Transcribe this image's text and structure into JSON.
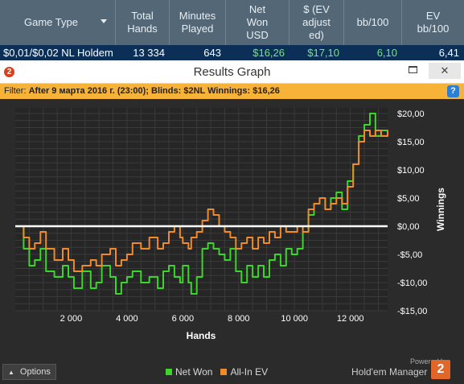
{
  "stats": {
    "columns": [
      {
        "label": "Game Type",
        "width": 144
      },
      {
        "label": "Total Hands",
        "width": 67
      },
      {
        "label": "Minutes Played",
        "width": 70
      },
      {
        "label": "Net Won USD",
        "width": 79
      },
      {
        "label": "$ (EV adjusted)",
        "width": 68
      },
      {
        "label": "bb/100",
        "width": 72
      },
      {
        "label": "EV bb/100",
        "width": 77
      }
    ],
    "header_lines": [
      [
        "Game Type"
      ],
      [
        "Total",
        "Hands"
      ],
      [
        "Minutes",
        "Played"
      ],
      [
        "Net",
        "Won",
        "USD"
      ],
      [
        "$ (EV",
        "adjust",
        "ed)"
      ],
      [
        "bb/100"
      ],
      [
        "EV",
        "bb/100"
      ]
    ],
    "row": {
      "game_type": "$0,01/$0,02 NL Holdem",
      "total_hands": "13 334",
      "minutes_played": "643",
      "net_won": "$16,26",
      "ev_adjusted": "$17,10",
      "bb100": "6,10",
      "ev_bb100": "6,41"
    }
  },
  "window": {
    "title": "Results Graph",
    "app_icon_text": "2",
    "close_label": "✕"
  },
  "filter": {
    "label": "Filter:",
    "text": "After 9 марта 2016 г. (23:00); Blinds: $2NL Winnings:",
    "winnings": "$16,26",
    "help_label": "?"
  },
  "footer": {
    "options_label": "Options",
    "powered_by": "Powered by",
    "brand": "Hold'em Manager",
    "brand_logo_text": "2"
  },
  "colors": {
    "net_won": "#3ad62a",
    "allin_ev": "#f08a2a",
    "zero_line": "#ffffff",
    "grid": "#3a3a3a",
    "axis_text": "#ffffff"
  },
  "chart_data": {
    "type": "line",
    "xlabel": "Hands",
    "ylabel": "Winnings",
    "xlim": [
      0,
      13334
    ],
    "ylim": [
      -15,
      21
    ],
    "x_ticks": [
      2000,
      4000,
      6000,
      8000,
      10000,
      12000
    ],
    "x_tick_labels": [
      "2 000",
      "4 000",
      "6 000",
      "8 000",
      "10 000",
      "12 000"
    ],
    "y_ticks": [
      20,
      15,
      10,
      5,
      0,
      -5,
      -10,
      -15
    ],
    "y_tick_labels": [
      "$20,00",
      "$15,00",
      "$10,00",
      "$5,00",
      "$0,00",
      "-$5,00",
      "-$10,00",
      "-$15,00"
    ],
    "grid": true,
    "legend_position": "bottom-center",
    "series": [
      {
        "name": "Net Won",
        "color": "#3ad62a",
        "x": [
          0,
          300,
          500,
          700,
          900,
          1100,
          1400,
          1700,
          1900,
          2100,
          2400,
          2700,
          2900,
          3100,
          3400,
          3600,
          3800,
          4000,
          4200,
          4500,
          4800,
          5100,
          5300,
          5500,
          5700,
          5900,
          6000,
          6200,
          6300,
          6500,
          6700,
          6900,
          7100,
          7300,
          7500,
          7700,
          7900,
          8100,
          8300,
          8500,
          8700,
          8900,
          9100,
          9300,
          9500,
          9700,
          9900,
          10100,
          10300,
          10500,
          10700,
          10900,
          11100,
          11300,
          11500,
          11700,
          11900,
          12100,
          12300,
          12500,
          12700,
          12900,
          13100,
          13334
        ],
        "y": [
          0,
          -4,
          -7,
          -6,
          -4,
          -8,
          -9,
          -7,
          -9,
          -11,
          -8,
          -11,
          -10,
          -7,
          -9,
          -12,
          -10,
          -9,
          -8,
          -10,
          -9,
          -11,
          -8,
          -7,
          -9,
          -10,
          -7,
          -10,
          -12,
          -9,
          -4,
          -3,
          -4,
          -5,
          -6,
          -4,
          -8,
          -10,
          -7,
          -9,
          -7,
          -9,
          -6,
          -5,
          -7,
          -4,
          -5,
          -4,
          -1,
          2,
          4,
          5,
          3,
          5,
          6,
          3,
          8,
          11,
          16,
          18,
          20,
          16,
          17,
          16
        ]
      },
      {
        "name": "All-In EV",
        "color": "#f08a2a",
        "x": [
          0,
          300,
          500,
          700,
          900,
          1100,
          1400,
          1700,
          1900,
          2100,
          2400,
          2700,
          2900,
          3100,
          3400,
          3600,
          3800,
          4000,
          4200,
          4500,
          4800,
          5100,
          5300,
          5500,
          5700,
          5900,
          6000,
          6200,
          6300,
          6500,
          6700,
          6900,
          7100,
          7300,
          7500,
          7700,
          7900,
          8100,
          8300,
          8500,
          8700,
          8900,
          9100,
          9300,
          9500,
          9700,
          9900,
          10100,
          10300,
          10500,
          10700,
          10900,
          11100,
          11300,
          11500,
          11700,
          11900,
          12100,
          12300,
          12500,
          12700,
          12900,
          13100,
          13334
        ],
        "y": [
          0,
          -2,
          -4,
          -3,
          -1,
          -4,
          -6,
          -4,
          -6,
          -8,
          -7,
          -6,
          -7,
          -5,
          -4,
          -7,
          -6,
          -5,
          -3,
          -4,
          -2,
          -4,
          -3,
          -1,
          0,
          -2,
          -3,
          -4,
          -2,
          -1,
          1,
          3,
          2,
          0,
          -1,
          -2,
          -4,
          -3,
          -2,
          -4,
          -2,
          -3,
          -1,
          -2,
          0,
          -1,
          -1,
          0,
          -1,
          3,
          4,
          5,
          3,
          4,
          5,
          4,
          7,
          11,
          15,
          17,
          16,
          17,
          16,
          17
        ]
      }
    ]
  }
}
